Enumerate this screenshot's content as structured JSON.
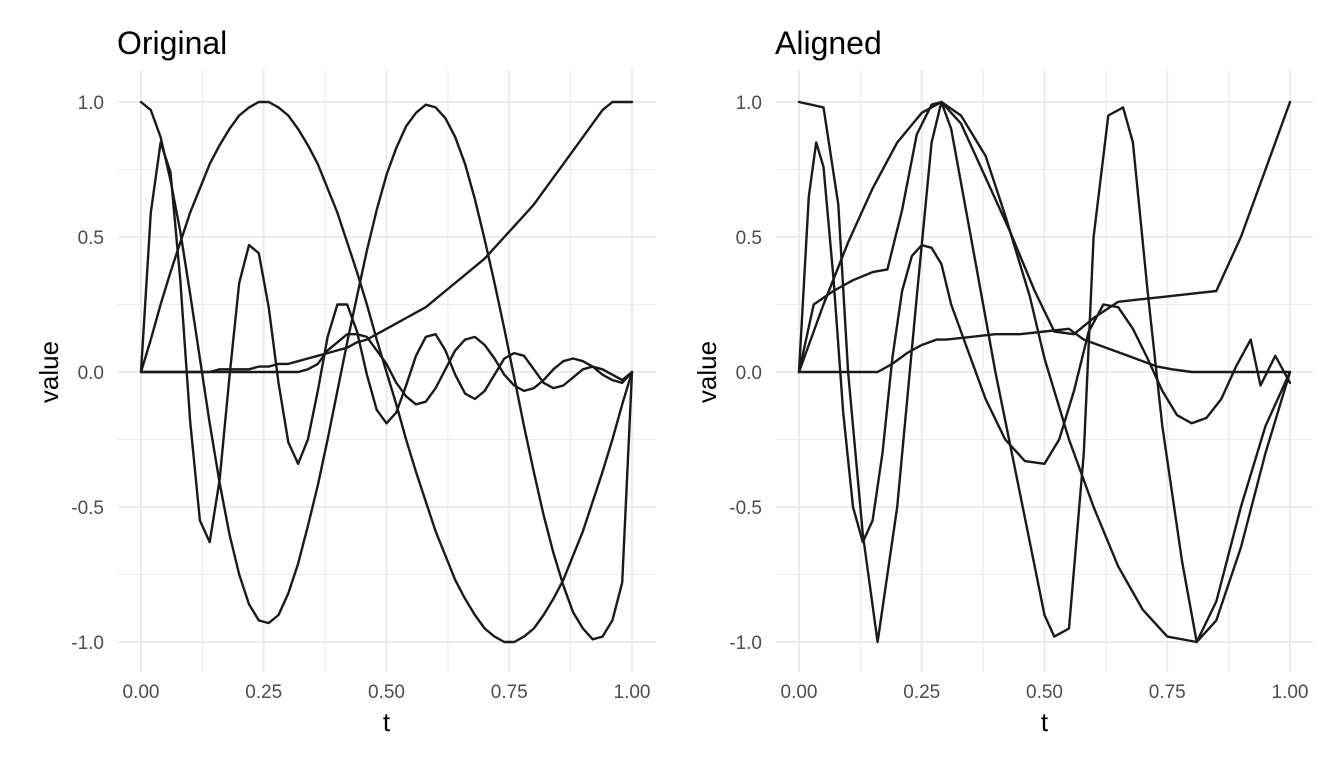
{
  "colors": {
    "line": "#1a1a1a",
    "grid": "#ebebeb",
    "tick_text": "#4d4d4d",
    "background": "#ffffff"
  },
  "chart_data": [
    {
      "type": "line",
      "title": "Original",
      "xlabel": "t",
      "ylabel": "value",
      "xlim": [
        0,
        1
      ],
      "ylim": [
        -1,
        1
      ],
      "x_ticks": [
        "0.00",
        "0.25",
        "0.50",
        "0.75",
        "1.00"
      ],
      "y_ticks": [
        "-1.0",
        "-0.5",
        "0.0",
        "0.5",
        "1.0"
      ],
      "grid": true,
      "legend": "none",
      "series": [
        {
          "x": [
            0,
            0.02,
            0.04,
            0.06,
            0.08,
            0.1,
            0.12,
            0.14,
            0.16,
            0.18,
            0.2,
            0.22,
            0.24,
            0.26,
            0.28,
            0.3,
            0.32,
            0.34,
            0.36,
            0.38,
            0.4,
            0.42,
            0.44,
            0.46,
            0.48,
            0.5,
            0.52,
            0.54,
            0.56,
            0.58,
            0.6,
            0.62,
            0.64,
            0.66,
            0.68,
            0.7,
            0.72,
            0.74,
            0.76,
            0.78,
            0.8,
            0.82,
            0.84,
            0.86,
            0.88,
            0.9,
            0.92,
            0.94,
            0.96,
            0.98,
            1
          ],
          "y": [
            1,
            0.97,
            0.87,
            0.71,
            0.52,
            0.29,
            0.05,
            -0.19,
            -0.41,
            -0.6,
            -0.75,
            -0.86,
            -0.92,
            -0.93,
            -0.9,
            -0.82,
            -0.71,
            -0.57,
            -0.42,
            -0.25,
            -0.07,
            0.11,
            0.28,
            0.45,
            0.6,
            0.73,
            0.83,
            0.91,
            0.96,
            0.99,
            0.98,
            0.94,
            0.87,
            0.77,
            0.64,
            0.49,
            0.33,
            0.16,
            -0.02,
            -0.2,
            -0.37,
            -0.53,
            -0.67,
            -0.79,
            -0.89,
            -0.95,
            -0.99,
            -0.98,
            -0.92,
            -0.78,
            0
          ]
        },
        {
          "x": [
            0,
            0.02,
            0.04,
            0.06,
            0.08,
            0.1,
            0.12,
            0.14,
            0.16,
            0.18,
            0.2,
            0.22,
            0.24,
            0.26,
            0.28,
            0.3,
            0.32,
            0.34,
            0.36,
            0.38,
            0.4,
            0.42,
            0.44,
            0.46,
            0.48,
            0.5,
            0.52,
            0.54,
            0.56,
            0.58,
            0.6,
            0.62,
            0.64,
            0.66,
            0.68,
            0.7,
            0.72,
            0.74,
            0.76,
            0.78,
            0.8,
            0.82,
            0.84,
            0.86,
            0.88,
            0.9,
            0.92,
            0.94,
            0.96,
            0.98,
            1
          ],
          "y": [
            0,
            0.12,
            0.25,
            0.37,
            0.48,
            0.59,
            0.68,
            0.77,
            0.84,
            0.9,
            0.95,
            0.98,
            1,
            1,
            0.98,
            0.95,
            0.9,
            0.84,
            0.77,
            0.68,
            0.59,
            0.48,
            0.37,
            0.25,
            0.12,
            0,
            -0.12,
            -0.25,
            -0.37,
            -0.48,
            -0.59,
            -0.68,
            -0.77,
            -0.84,
            -0.9,
            -0.95,
            -0.98,
            -1,
            -1,
            -0.98,
            -0.95,
            -0.9,
            -0.84,
            -0.77,
            -0.68,
            -0.59,
            -0.48,
            -0.37,
            -0.25,
            -0.12,
            0
          ]
        },
        {
          "x": [
            0,
            0.02,
            0.04,
            0.06,
            0.08,
            0.1,
            0.12,
            0.14,
            0.16,
            0.18,
            0.2,
            0.22,
            0.24,
            0.26,
            0.28,
            0.3,
            0.32,
            0.34,
            0.36,
            0.38,
            0.4,
            0.42,
            0.44,
            0.46,
            0.48,
            0.5,
            0.52,
            0.54,
            0.56,
            0.58,
            0.6,
            0.62,
            0.64,
            0.66,
            0.68,
            0.7,
            0.72,
            0.74,
            0.76,
            0.78,
            0.8,
            0.82,
            0.84,
            0.86,
            0.88,
            0.9,
            0.92,
            0.94,
            0.96,
            0.98,
            1
          ],
          "y": [
            0,
            0,
            0,
            0,
            0,
            0,
            0,
            0,
            0.01,
            0.01,
            0.01,
            0.01,
            0.02,
            0.02,
            0.03,
            0.03,
            0.04,
            0.05,
            0.06,
            0.07,
            0.08,
            0.09,
            0.11,
            0.12,
            0.14,
            0.16,
            0.18,
            0.2,
            0.22,
            0.24,
            0.27,
            0.3,
            0.33,
            0.36,
            0.39,
            0.42,
            0.46,
            0.5,
            0.54,
            0.58,
            0.62,
            0.67,
            0.72,
            0.77,
            0.82,
            0.87,
            0.92,
            0.97,
            1,
            1,
            1
          ]
        },
        {
          "x": [
            0,
            0.02,
            0.04,
            0.06,
            0.08,
            0.1,
            0.12,
            0.14,
            0.16,
            0.18,
            0.2,
            0.22,
            0.24,
            0.26,
            0.28,
            0.3,
            0.32,
            0.34,
            0.36,
            0.38,
            0.4,
            0.42,
            0.44,
            0.46,
            0.48,
            0.5,
            0.52,
            0.54,
            0.56,
            0.58,
            0.6,
            0.62,
            0.64,
            0.66,
            0.68,
            0.7,
            0.72,
            0.74,
            0.76,
            0.78,
            0.8,
            0.82,
            0.84,
            0.86,
            0.88,
            0.9,
            0.92,
            0.94,
            0.96,
            0.98,
            1
          ],
          "y": [
            0,
            0.59,
            0.85,
            0.74,
            0.34,
            -0.18,
            -0.55,
            -0.63,
            -0.4,
            -0.02,
            0.33,
            0.47,
            0.44,
            0.24,
            -0.04,
            -0.26,
            -0.34,
            -0.25,
            -0.07,
            0.13,
            0.25,
            0.25,
            0.15,
            -0.01,
            -0.14,
            -0.19,
            -0.15,
            -0.05,
            0.06,
            0.13,
            0.14,
            0.08,
            -0.01,
            -0.08,
            -0.1,
            -0.07,
            -0.01,
            0.05,
            0.07,
            0.06,
            0.01,
            -0.04,
            -0.06,
            -0.05,
            -0.02,
            0.01,
            0.02,
            0.01,
            -0.01,
            -0.03,
            0
          ]
        },
        {
          "x": [
            0,
            0.02,
            0.04,
            0.06,
            0.08,
            0.1,
            0.12,
            0.14,
            0.16,
            0.18,
            0.2,
            0.22,
            0.24,
            0.26,
            0.28,
            0.3,
            0.32,
            0.34,
            0.36,
            0.38,
            0.4,
            0.42,
            0.44,
            0.46,
            0.48,
            0.5,
            0.52,
            0.54,
            0.56,
            0.58,
            0.6,
            0.62,
            0.64,
            0.66,
            0.68,
            0.7,
            0.72,
            0.74,
            0.76,
            0.78,
            0.8,
            0.82,
            0.84,
            0.86,
            0.88,
            0.9,
            0.92,
            0.94,
            0.96,
            0.98,
            1
          ],
          "y": [
            0,
            0,
            0,
            0,
            0,
            0,
            0,
            0,
            0,
            0,
            0,
            0,
            0,
            0,
            0,
            0,
            0,
            0.01,
            0.03,
            0.08,
            0.11,
            0.14,
            0.14,
            0.13,
            0.08,
            0.03,
            -0.04,
            -0.09,
            -0.12,
            -0.11,
            -0.06,
            0.01,
            0.08,
            0.12,
            0.13,
            0.1,
            0.05,
            -0.01,
            -0.05,
            -0.07,
            -0.06,
            -0.03,
            0.01,
            0.04,
            0.05,
            0.04,
            0.02,
            -0.01,
            -0.03,
            -0.04,
            0
          ]
        }
      ]
    },
    {
      "type": "line",
      "title": "Aligned",
      "xlabel": "t",
      "ylabel": "value",
      "xlim": [
        0,
        1
      ],
      "ylim": [
        -1,
        1
      ],
      "x_ticks": [
        "0.00",
        "0.25",
        "0.50",
        "0.75",
        "1.00"
      ],
      "y_ticks": [
        "-1.0",
        "-0.5",
        "0.0",
        "0.5",
        "1.0"
      ],
      "grid": true,
      "legend": "none",
      "series": [
        {
          "x": [
            0,
            0.05,
            0.08,
            0.1,
            0.13,
            0.16,
            0.2,
            0.24,
            0.27,
            0.29,
            0.31,
            0.35,
            0.4,
            0.45,
            0.5,
            0.52,
            0.55,
            0.58,
            0.6,
            0.63,
            0.66,
            0.68,
            0.71,
            0.74,
            0.78,
            0.81,
            0.85,
            0.9,
            0.95,
            1
          ],
          "y": [
            1,
            0.98,
            0.62,
            0,
            -0.6,
            -1,
            -0.5,
            0.28,
            0.85,
            1,
            0.9,
            0.5,
            0,
            -0.45,
            -0.9,
            -0.98,
            -0.95,
            -0.3,
            0.5,
            0.95,
            0.98,
            0.85,
            0.3,
            -0.2,
            -0.7,
            -1,
            -0.85,
            -0.5,
            -0.2,
            0
          ]
        },
        {
          "x": [
            0,
            0.05,
            0.1,
            0.15,
            0.2,
            0.25,
            0.29,
            0.33,
            0.38,
            0.42,
            0.47,
            0.5,
            0.55,
            0.6,
            0.65,
            0.7,
            0.75,
            0.81,
            0.85,
            0.9,
            0.95,
            1
          ],
          "y": [
            0,
            0.25,
            0.48,
            0.68,
            0.85,
            0.96,
            1,
            0.95,
            0.8,
            0.58,
            0.28,
            0.05,
            -0.25,
            -0.5,
            -0.72,
            -0.88,
            -0.98,
            -1,
            -0.92,
            -0.65,
            -0.3,
            0
          ]
        },
        {
          "x": [
            0,
            0.03,
            0.07,
            0.11,
            0.15,
            0.18,
            0.21,
            0.24,
            0.27,
            0.29,
            0.33,
            0.38,
            0.43,
            0.48,
            0.52,
            0.56,
            0.6,
            0.65,
            0.7,
            0.75,
            0.8,
            0.85,
            0.9,
            0.95,
            1
          ],
          "y": [
            0,
            0.25,
            0.3,
            0.34,
            0.37,
            0.38,
            0.6,
            0.88,
            0.99,
            1,
            0.92,
            0.72,
            0.52,
            0.3,
            0.15,
            0.14,
            0.2,
            0.26,
            0.27,
            0.28,
            0.29,
            0.3,
            0.5,
            0.75,
            1
          ]
        },
        {
          "x": [
            0,
            0.02,
            0.035,
            0.05,
            0.07,
            0.09,
            0.11,
            0.13,
            0.15,
            0.17,
            0.19,
            0.21,
            0.23,
            0.25,
            0.27,
            0.29,
            0.31,
            0.34,
            0.38,
            0.42,
            0.46,
            0.5,
            0.53,
            0.56,
            0.59,
            0.62,
            0.65,
            0.68,
            0.71,
            0.74,
            0.77,
            0.8,
            0.83,
            0.86,
            0.89,
            0.92,
            0.94,
            0.97,
            1
          ],
          "y": [
            0,
            0.65,
            0.85,
            0.76,
            0.35,
            -0.15,
            -0.5,
            -0.63,
            -0.55,
            -0.3,
            0.05,
            0.3,
            0.43,
            0.47,
            0.46,
            0.4,
            0.25,
            0.1,
            -0.1,
            -0.25,
            -0.33,
            -0.34,
            -0.25,
            -0.07,
            0.15,
            0.25,
            0.24,
            0.16,
            0.05,
            -0.07,
            -0.16,
            -0.19,
            -0.17,
            -0.1,
            0.02,
            0.12,
            -0.05,
            0.06,
            -0.04
          ]
        },
        {
          "x": [
            0,
            0.05,
            0.1,
            0.16,
            0.19,
            0.22,
            0.25,
            0.28,
            0.3,
            0.35,
            0.4,
            0.45,
            0.5,
            0.55,
            0.58,
            0.61,
            0.64,
            0.67,
            0.7,
            0.73,
            0.76,
            0.8,
            0.85,
            0.9,
            0.95,
            1
          ],
          "y": [
            0,
            0,
            0,
            0,
            0.03,
            0.07,
            0.1,
            0.12,
            0.12,
            0.13,
            0.14,
            0.14,
            0.15,
            0.16,
            0.12,
            0.1,
            0.08,
            0.06,
            0.04,
            0.02,
            0.01,
            0,
            0,
            0,
            0,
            0
          ]
        }
      ]
    }
  ]
}
